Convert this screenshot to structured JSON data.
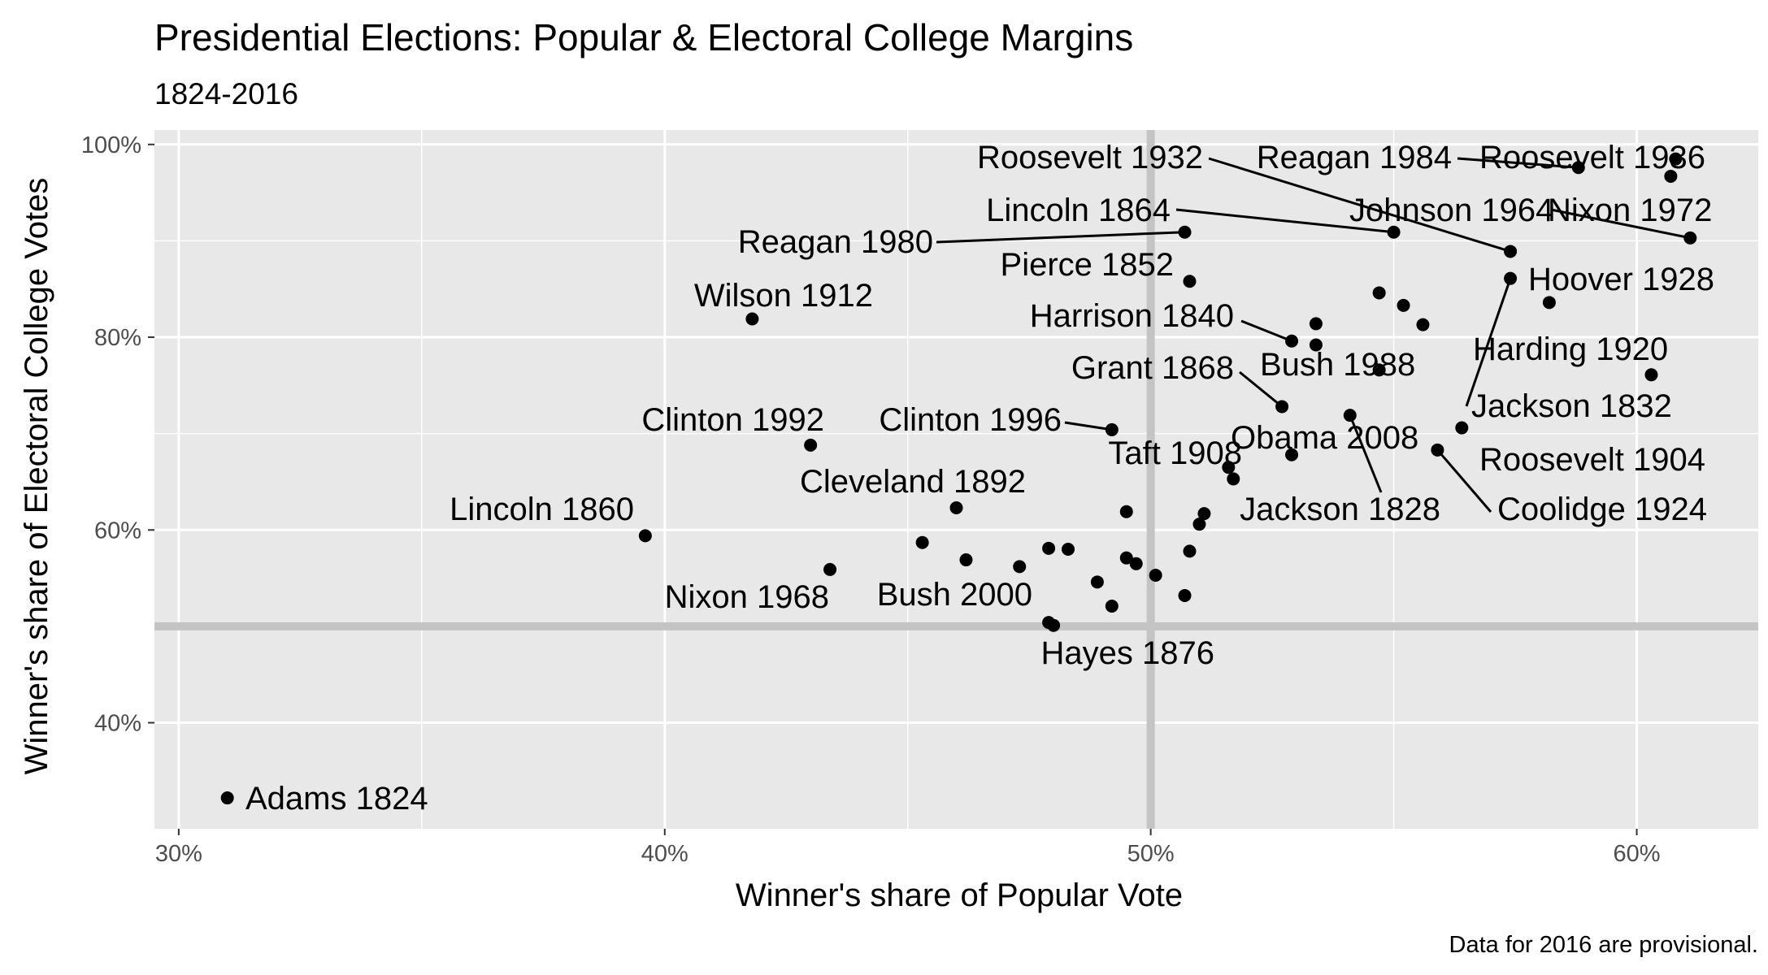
{
  "chart_data": {
    "type": "scatter",
    "title": "Presidential Elections: Popular & Electoral College Margins",
    "subtitle": "1824-2016",
    "xlabel": "Winner's share of Popular Vote",
    "ylabel": "Winner's share of Electoral College Votes",
    "caption": "Data for 2016 are provisional.",
    "xlim": [
      0.295,
      0.625
    ],
    "ylim": [
      0.29,
      1.015
    ],
    "x_ticks": [
      {
        "value": 0.3,
        "label": "30%"
      },
      {
        "value": 0.4,
        "label": "40%"
      },
      {
        "value": 0.5,
        "label": "50%"
      },
      {
        "value": 0.6,
        "label": "60%"
      }
    ],
    "y_ticks": [
      {
        "value": 0.4,
        "label": "40%"
      },
      {
        "value": 0.6,
        "label": "60%"
      },
      {
        "value": 0.8,
        "label": "80%"
      },
      {
        "value": 1.0,
        "label": "100%"
      }
    ],
    "reference_lines": {
      "x": 0.5,
      "y": 0.5
    },
    "grid": true,
    "colors": {
      "panel": "#e8e8e8",
      "grid": "#ffffff",
      "reference": "#c4c4c4",
      "point": "#000000"
    },
    "points": [
      {
        "x": 0.31,
        "y": 0.322,
        "label": "Adams 1824"
      },
      {
        "x": 0.396,
        "y": 0.594,
        "label": "Lincoln 1860"
      },
      {
        "x": 0.418,
        "y": 0.819,
        "label": "Wilson 1912"
      },
      {
        "x": 0.43,
        "y": 0.688,
        "label": "Clinton 1992"
      },
      {
        "x": 0.434,
        "y": 0.559,
        "label": "Nixon 1968"
      },
      {
        "x": 0.453,
        "y": 0.587
      },
      {
        "x": 0.46,
        "y": 0.623,
        "label": "Cleveland 1892"
      },
      {
        "x": 0.462,
        "y": 0.569
      },
      {
        "x": 0.473,
        "y": 0.562
      },
      {
        "x": 0.479,
        "y": 0.581
      },
      {
        "x": 0.479,
        "y": 0.504,
        "label": "Bush 2000"
      },
      {
        "x": 0.48,
        "y": 0.501,
        "label": "Hayes 1876"
      },
      {
        "x": 0.483,
        "y": 0.58
      },
      {
        "x": 0.489,
        "y": 0.546
      },
      {
        "x": 0.492,
        "y": 0.521
      },
      {
        "x": 0.492,
        "y": 0.704,
        "label": "Clinton 1996"
      },
      {
        "x": 0.495,
        "y": 0.619
      },
      {
        "x": 0.495,
        "y": 0.571
      },
      {
        "x": 0.497,
        "y": 0.565
      },
      {
        "x": 0.501,
        "y": 0.553
      },
      {
        "x": 0.507,
        "y": 0.532
      },
      {
        "x": 0.508,
        "y": 0.578
      },
      {
        "x": 0.507,
        "y": 0.909,
        "label": "Reagan 1980"
      },
      {
        "x": 0.508,
        "y": 0.858,
        "label": "Pierce 1852"
      },
      {
        "x": 0.51,
        "y": 0.606
      },
      {
        "x": 0.511,
        "y": 0.617
      },
      {
        "x": 0.516,
        "y": 0.665,
        "label": "Taft 1908"
      },
      {
        "x": 0.517,
        "y": 0.653
      },
      {
        "x": 0.527,
        "y": 0.728,
        "label": "Grant 1868"
      },
      {
        "x": 0.529,
        "y": 0.678,
        "label": "Obama 2008"
      },
      {
        "x": 0.529,
        "y": 0.796,
        "label": "Harrison 1840"
      },
      {
        "x": 0.534,
        "y": 0.814
      },
      {
        "x": 0.534,
        "y": 0.792
      },
      {
        "x": 0.541,
        "y": 0.719,
        "label": "Jackson 1828"
      },
      {
        "x": 0.547,
        "y": 0.846
      },
      {
        "x": 0.547,
        "y": 0.766,
        "label": "Bush 1988"
      },
      {
        "x": 0.55,
        "y": 0.909,
        "label": "Lincoln 1864"
      },
      {
        "x": 0.552,
        "y": 0.833
      },
      {
        "x": 0.556,
        "y": 0.813
      },
      {
        "x": 0.559,
        "y": 0.683,
        "label": "Coolidge 1924"
      },
      {
        "x": 0.564,
        "y": 0.706,
        "label": "Roosevelt 1904"
      },
      {
        "x": 0.574,
        "y": 0.889,
        "label": "Roosevelt 1932"
      },
      {
        "x": 0.574,
        "y": 0.861,
        "label": "Jackson 1832"
      },
      {
        "x": 0.582,
        "y": 0.836,
        "label": "Hoover 1928"
      },
      {
        "x": 0.588,
        "y": 0.976,
        "label": "Reagan 1984"
      },
      {
        "x": 0.603,
        "y": 0.761,
        "label": "Harding 1920"
      },
      {
        "x": 0.607,
        "y": 0.967,
        "label": "Johnson 1964"
      },
      {
        "x": 0.608,
        "y": 0.985,
        "label": "Roosevelt 1936"
      },
      {
        "x": 0.611,
        "y": 0.903,
        "label": "Nixon 1972"
      }
    ]
  }
}
